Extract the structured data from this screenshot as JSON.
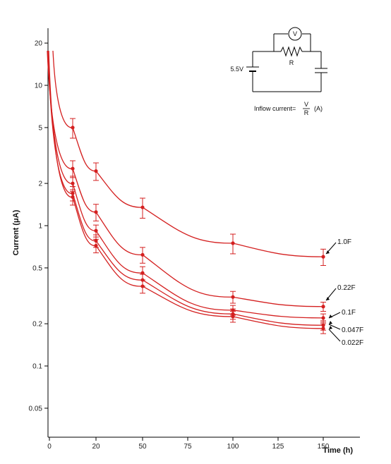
{
  "chart_data": {
    "type": "line",
    "title": "",
    "xlabel": "Time (h)",
    "ylabel": "Current (μA)",
    "y_scale": "log",
    "ylim": [
      0.04,
      30
    ],
    "grid": false,
    "x_ticks": [
      "0",
      "20",
      "50",
      "75",
      "100",
      "125",
      "150"
    ],
    "y_ticks": [
      "20",
      "10",
      "5",
      "2",
      "1",
      "0.5",
      "0.2",
      "0.1",
      "0.05"
    ],
    "x_points": [
      10,
      20,
      50,
      100,
      150
    ],
    "series": [
      {
        "name": "1.0F",
        "values": [
          5.0,
          2.45,
          1.35,
          0.75,
          0.6
        ],
        "errors": [
          0.8,
          0.35,
          0.22,
          0.12,
          0.08
        ]
      },
      {
        "name": "0.22F",
        "values": [
          2.55,
          1.25,
          0.62,
          0.31,
          0.265
        ],
        "errors": [
          0.35,
          0.17,
          0.08,
          0.03,
          0.02
        ]
      },
      {
        "name": "0.1F",
        "values": [
          2.0,
          0.92,
          0.46,
          0.25,
          0.22
        ],
        "errors": [
          0.25,
          0.09,
          0.05,
          0.02,
          0.015
        ]
      },
      {
        "name": "0.047F",
        "values": [
          1.7,
          0.78,
          0.41,
          0.235,
          0.195
        ],
        "errors": [
          0.2,
          0.08,
          0.04,
          0.02,
          0.015
        ]
      },
      {
        "name": "0.022F",
        "values": [
          1.6,
          0.72,
          0.37,
          0.225,
          0.185
        ],
        "errors": [
          0.2,
          0.08,
          0.04,
          0.02,
          0.015
        ]
      }
    ],
    "colors": {
      "series": "#d42020",
      "axis": "#000000",
      "arrow": "#000000"
    },
    "inset": {
      "voltage_label": "5.5V",
      "resistor_label": "R",
      "meter_label": "V",
      "formula_prefix": "Inflow current=",
      "formula_numerator": "V",
      "formula_denominator": "R",
      "formula_unit": "(A)"
    }
  }
}
